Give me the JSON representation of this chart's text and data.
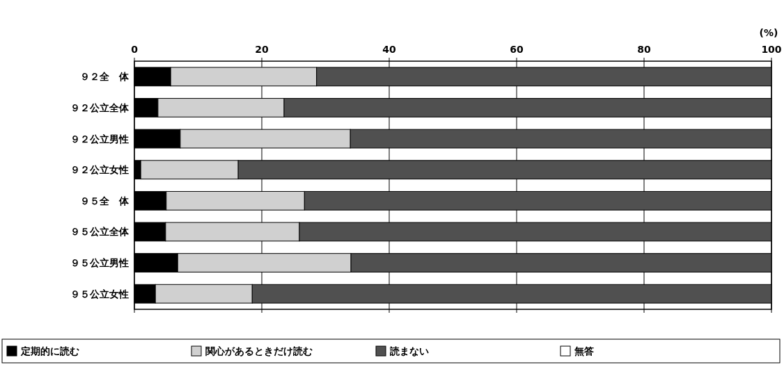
{
  "chart_data": {
    "type": "bar",
    "orientation": "horizontal",
    "stacked": true,
    "xlabel": "(%)",
    "categories": [
      "９２全　体",
      "９２公立全体",
      "９２公立男性",
      "９２公立女性",
      "９５全　体",
      "９５公立全体",
      "９５公立男性",
      "９５公立女性"
    ],
    "series": [
      {
        "name": "定期的に読む",
        "color": "#000000",
        "values": [
          5.7,
          3.7,
          7.2,
          1.0,
          5.0,
          4.9,
          6.8,
          3.3
        ]
      },
      {
        "name": "関心があるときだけ読む",
        "color": "#d0d0d0",
        "values": [
          22.9,
          19.8,
          26.7,
          15.3,
          21.7,
          21.0,
          27.2,
          15.2
        ]
      },
      {
        "name": "読まない",
        "color": "#505050",
        "values": [
          71.4,
          76.5,
          66.1,
          83.7,
          73.3,
          74.1,
          66.0,
          81.5
        ]
      },
      {
        "name": "無答",
        "color": "#ffffff",
        "values": [
          0,
          0,
          0,
          0,
          0,
          0,
          0,
          0
        ]
      }
    ],
    "xlim": [
      0,
      100
    ],
    "xticks": [
      0,
      20,
      40,
      60,
      80,
      100
    ],
    "grid": "x",
    "legend": "bottom"
  }
}
